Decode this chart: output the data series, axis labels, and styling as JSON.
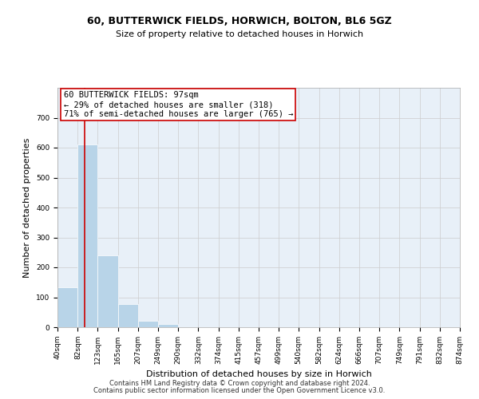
{
  "title1": "60, BUTTERWICK FIELDS, HORWICH, BOLTON, BL6 5GZ",
  "title2": "Size of property relative to detached houses in Horwich",
  "xlabel": "Distribution of detached houses by size in Horwich",
  "ylabel": "Number of detached properties",
  "bin_edges": [
    40,
    82,
    123,
    165,
    207,
    249,
    290,
    332,
    374,
    415,
    457,
    499,
    540,
    582,
    624,
    666,
    707,
    749,
    791,
    832,
    874
  ],
  "bin_labels": [
    "40sqm",
    "82sqm",
    "123sqm",
    "165sqm",
    "207sqm",
    "249sqm",
    "290sqm",
    "332sqm",
    "374sqm",
    "415sqm",
    "457sqm",
    "499sqm",
    "540sqm",
    "582sqm",
    "624sqm",
    "666sqm",
    "707sqm",
    "749sqm",
    "791sqm",
    "832sqm",
    "874sqm"
  ],
  "counts": [
    133,
    610,
    240,
    78,
    22,
    10,
    0,
    0,
    0,
    0,
    0,
    0,
    0,
    0,
    0,
    0,
    0,
    0,
    0,
    0
  ],
  "bar_color": "#b8d4e8",
  "vline_color": "#cc0000",
  "vline_x": 97,
  "annotation_text_line1": "60 BUTTERWICK FIELDS: 97sqm",
  "annotation_text_line2": "← 29% of detached houses are smaller (318)",
  "annotation_text_line3": "71% of semi-detached houses are larger (765) →",
  "annotation_box_edgecolor": "#cc0000",
  "ylim": [
    0,
    800
  ],
  "yticks": [
    0,
    100,
    200,
    300,
    400,
    500,
    600,
    700
  ],
  "footer1": "Contains HM Land Registry data © Crown copyright and database right 2024.",
  "footer2": "Contains public sector information licensed under the Open Government Licence v3.0.",
  "grid_color": "#cccccc",
  "bg_color": "#e8f0f8",
  "title1_fontsize": 9,
  "title2_fontsize": 8,
  "ylabel_fontsize": 8,
  "xlabel_fontsize": 8,
  "tick_fontsize": 6.5,
  "annotation_fontsize": 7.5,
  "footer_fontsize": 6
}
